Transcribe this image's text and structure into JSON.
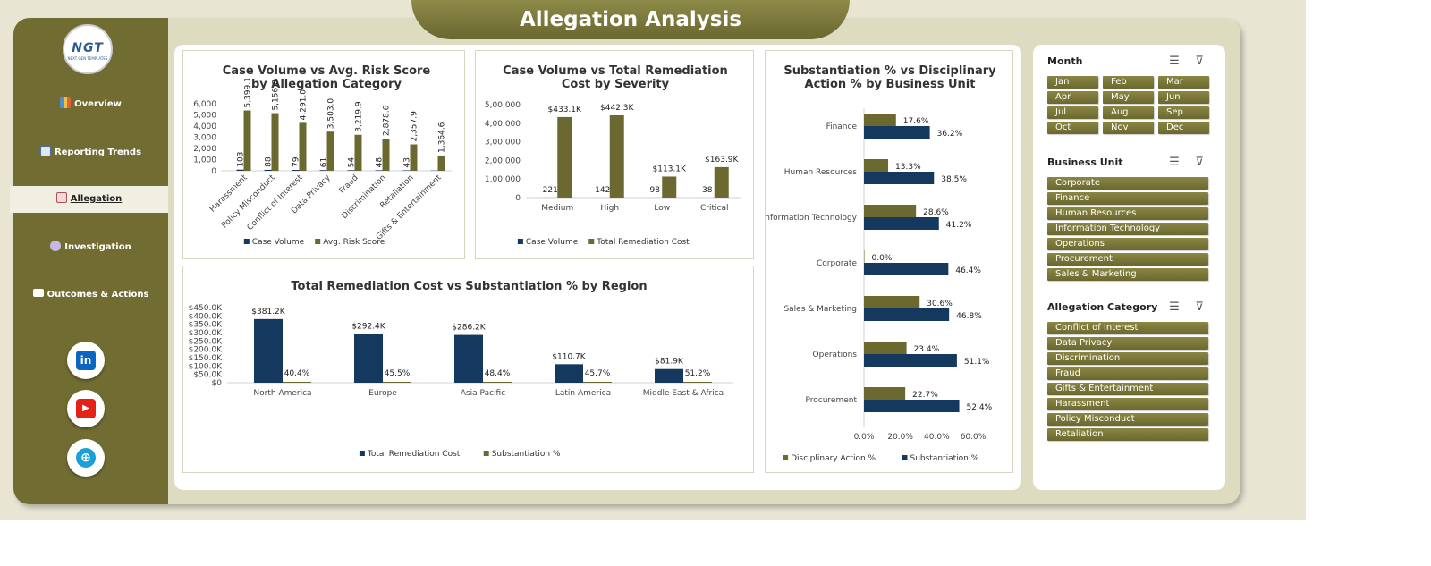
{
  "title": "Allegation Analysis",
  "logo": {
    "main": "NGT",
    "sub": "NEXT GEN TEMPLATES"
  },
  "nav": [
    {
      "label": "Overview",
      "icon": "bar-chart-icon"
    },
    {
      "label": "Reporting Trends",
      "icon": "trend-chart-icon"
    },
    {
      "label": "Allegation",
      "icon": "document-icon"
    },
    {
      "label": "Investigation",
      "icon": "gear-icon"
    },
    {
      "label": "Outcomes & Actions",
      "icon": "folder-icon"
    }
  ],
  "social": [
    {
      "name": "linkedin",
      "glyph": "in",
      "color": "#0a66c2"
    },
    {
      "name": "youtube",
      "glyph": "▶",
      "color": "#e62117"
    },
    {
      "name": "website",
      "glyph": "⊕",
      "color": "#1b9fd6"
    }
  ],
  "colors": {
    "olive": "#6b6830",
    "navy": "#15385f"
  },
  "filters": {
    "month": {
      "title": "Month",
      "options": [
        "Jan",
        "Feb",
        "Mar",
        "Apr",
        "May",
        "Jun",
        "Jul",
        "Aug",
        "Sep",
        "Oct",
        "Nov",
        "Dec"
      ]
    },
    "business_unit": {
      "title": "Business Unit",
      "options": [
        "Corporate",
        "Finance",
        "Human Resources",
        "Information Technology",
        "Operations",
        "Procurement",
        "Sales & Marketing"
      ]
    },
    "allegation_category": {
      "title": "Allegation Category",
      "options": [
        "Conflict of Interest",
        "Data Privacy",
        "Discrimination",
        "Fraud",
        "Gifts & Entertainment",
        "Harassment",
        "Policy Misconduct",
        "Retaliation"
      ]
    }
  },
  "chart_data": [
    {
      "type": "bar",
      "title": "Case Volume vs Avg. Risk Score by Allegation Category",
      "categories": [
        "Harassment",
        "Policy Misconduct",
        "Conflict of Interest",
        "Data Privacy",
        "Fraud",
        "Discrimination",
        "Retaliation",
        "Gifts & Entertainment"
      ],
      "series": [
        {
          "name": "Case Volume",
          "values": [
            103,
            88,
            79,
            61,
            54,
            48,
            43,
            27
          ],
          "labels": [
            "103",
            "88",
            "79",
            "61",
            "54",
            "48",
            "43",
            ""
          ],
          "color": "#15385f"
        },
        {
          "name": "Avg. Risk Score",
          "values": [
            5399.1,
            5156.8,
            4291.0,
            3503.0,
            3219.9,
            2878.6,
            2357.9,
            1364.6
          ],
          "labels": [
            "5,399.1",
            "5,156.8",
            "4,291.0",
            "3,503.0",
            "3,219.9",
            "2,878.6",
            "2,357.9",
            "1,364.6"
          ],
          "color": "#6b6830"
        }
      ],
      "yticks": [
        "0",
        "1,000",
        "2,000",
        "3,000",
        "4,000",
        "5,000",
        "6,000"
      ],
      "ylim": [
        0,
        6000
      ],
      "legend": "bottom"
    },
    {
      "type": "bar",
      "title": "Case Volume vs Total Remediation Cost by Severity",
      "categories": [
        "Medium",
        "High",
        "Low",
        "Critical"
      ],
      "series": [
        {
          "name": "Case Volume",
          "values": [
            221,
            142,
            98,
            38
          ],
          "labels": [
            "221",
            "142",
            "98",
            "38"
          ],
          "color": "#15385f"
        },
        {
          "name": "Total Remediation Cost",
          "values": [
            433100,
            442300,
            113100,
            163900
          ],
          "labels": [
            "$433.1K",
            "$442.3K",
            "$113.1K",
            "$163.9K"
          ],
          "color": "#6b6830"
        }
      ],
      "yticks": [
        "0",
        "1,00,000",
        "2,00,000",
        "3,00,000",
        "4,00,000",
        "5,00,000"
      ],
      "ylim": [
        0,
        500000
      ],
      "legend": "bottom"
    },
    {
      "type": "bar",
      "title": "Total Remediation Cost vs Substantiation % by Region",
      "categories": [
        "North America",
        "Europe",
        "Asia Pacific",
        "Latin America",
        "Middle East & Africa"
      ],
      "series": [
        {
          "name": "Total Remediation Cost",
          "values": [
            381200,
            292400,
            286200,
            110700,
            81900
          ],
          "labels": [
            "$381.2K",
            "$292.4K",
            "$286.2K",
            "$110.7K",
            "$81.9K"
          ],
          "color": "#15385f"
        },
        {
          "name": "Substantiation %",
          "values": [
            40.4,
            45.5,
            48.4,
            45.7,
            51.2
          ],
          "labels": [
            "40.4%",
            "45.5%",
            "48.4%",
            "45.7%",
            "51.2%"
          ],
          "color": "#6b6830"
        }
      ],
      "yticks": [
        "$0",
        "$50.0K",
        "$100.0K",
        "$150.0K",
        "$200.0K",
        "$250.0K",
        "$300.0K",
        "$350.0K",
        "$400.0K",
        "$450.0K"
      ],
      "ylim": [
        0,
        450000
      ],
      "legend": "bottom"
    },
    {
      "type": "bar",
      "orientation": "horizontal",
      "title": "Substantiation % vs Disciplinary Action % by Business Unit",
      "categories": [
        "Finance",
        "Human Resources",
        "Information Technology",
        "Corporate",
        "Sales & Marketing",
        "Operations",
        "Procurement"
      ],
      "series": [
        {
          "name": "Disciplinary Action %",
          "values": [
            17.6,
            13.3,
            28.6,
            0.0,
            30.6,
            23.4,
            22.7
          ],
          "labels": [
            "17.6%",
            "13.3%",
            "28.6%",
            "0.0%",
            "30.6%",
            "23.4%",
            "22.7%"
          ],
          "color": "#6b6830"
        },
        {
          "name": "Substantiation %",
          "values": [
            36.2,
            38.5,
            41.2,
            46.4,
            46.8,
            51.1,
            52.4
          ],
          "labels": [
            "36.2%",
            "38.5%",
            "41.2%",
            "46.4%",
            "46.8%",
            "51.1%",
            "52.4%"
          ],
          "color": "#15385f"
        }
      ],
      "xticks": [
        "0.0%",
        "20.0%",
        "40.0%",
        "60.0%"
      ],
      "xlim": [
        0,
        60
      ],
      "legend": "bottom"
    }
  ]
}
